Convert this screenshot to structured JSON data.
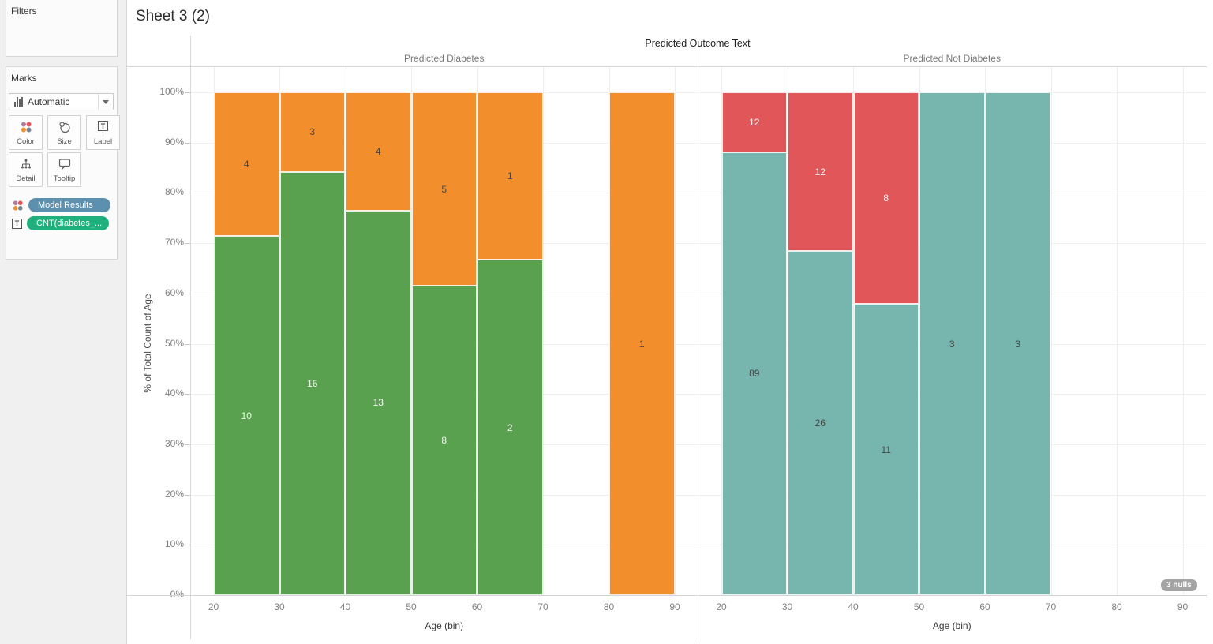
{
  "header": {
    "title": "Sheet 3 (2)"
  },
  "sidebar": {
    "filters_title": "Filters",
    "marks_title": "Marks",
    "mark_type": "Automatic",
    "buttons": [
      {
        "label": "Color"
      },
      {
        "label": "Size"
      },
      {
        "label": "Label"
      },
      {
        "label": "Detail"
      },
      {
        "label": "Tooltip"
      }
    ],
    "pills": [
      {
        "label": "Model Results",
        "color": "#5C90AE",
        "icon": "color-dots-icon"
      },
      {
        "label": "CNT(diabetes_...",
        "color": "#1FB07E",
        "icon": "text-icon"
      }
    ]
  },
  "chart_data": {
    "type": "bar",
    "stacking": "100%",
    "title": "Predicted Outcome Text",
    "xlabel": "Age (bin)",
    "ylabel": "% of Total Count of Age",
    "x_ticks": [
      20,
      30,
      40,
      50,
      60,
      70,
      80,
      90
    ],
    "y_tick_labels": [
      "0%",
      "10%",
      "20%",
      "30%",
      "40%",
      "50%",
      "60%",
      "70%",
      "80%",
      "90%",
      "100%"
    ],
    "ylim": [
      0,
      100
    ],
    "grid": true,
    "legend": "none",
    "colors": {
      "green": "#59A14F",
      "orange": "#F28E2B",
      "teal": "#77B5AF",
      "red": "#E15759"
    },
    "panels": [
      {
        "label": "Predicted Diabetes",
        "bars": [
          {
            "bin_start": 20,
            "segments": [
              {
                "value": 10,
                "pct": 71.4,
                "color": "#59A14F",
                "label_light": true
              },
              {
                "value": 4,
                "pct": 28.6,
                "color": "#F28E2B",
                "label_light": false
              }
            ]
          },
          {
            "bin_start": 30,
            "segments": [
              {
                "value": 16,
                "pct": 84.2,
                "color": "#59A14F",
                "label_light": true
              },
              {
                "value": 3,
                "pct": 15.8,
                "color": "#F28E2B",
                "label_light": false
              }
            ]
          },
          {
            "bin_start": 40,
            "segments": [
              {
                "value": 13,
                "pct": 76.5,
                "color": "#59A14F",
                "label_light": true
              },
              {
                "value": 4,
                "pct": 23.5,
                "color": "#F28E2B",
                "label_light": false
              }
            ]
          },
          {
            "bin_start": 50,
            "segments": [
              {
                "value": 8,
                "pct": 61.5,
                "color": "#59A14F",
                "label_light": true
              },
              {
                "value": 5,
                "pct": 38.5,
                "color": "#F28E2B",
                "label_light": false
              }
            ]
          },
          {
            "bin_start": 60,
            "segments": [
              {
                "value": 2,
                "pct": 66.7,
                "color": "#59A14F",
                "label_light": true
              },
              {
                "value": 1,
                "pct": 33.3,
                "color": "#F28E2B",
                "label_light": false
              }
            ]
          },
          {
            "bin_start": 80,
            "segments": [
              {
                "value": 1,
                "pct": 100,
                "color": "#F28E2B",
                "label_light": false
              }
            ]
          }
        ]
      },
      {
        "label": "Predicted Not Diabetes",
        "bars": [
          {
            "bin_start": 20,
            "segments": [
              {
                "value": 89,
                "pct": 88.1,
                "color": "#77B5AF",
                "label_light": false
              },
              {
                "value": 12,
                "pct": 11.9,
                "color": "#E15759",
                "label_light": true
              }
            ]
          },
          {
            "bin_start": 30,
            "segments": [
              {
                "value": 26,
                "pct": 68.4,
                "color": "#77B5AF",
                "label_light": false
              },
              {
                "value": 12,
                "pct": 31.6,
                "color": "#E15759",
                "label_light": true
              }
            ]
          },
          {
            "bin_start": 40,
            "segments": [
              {
                "value": 11,
                "pct": 57.9,
                "color": "#77B5AF",
                "label_light": false
              },
              {
                "value": 8,
                "pct": 42.1,
                "color": "#E15759",
                "label_light": true
              }
            ]
          },
          {
            "bin_start": 50,
            "segments": [
              {
                "value": 3,
                "pct": 100,
                "color": "#77B5AF",
                "label_light": false
              }
            ]
          },
          {
            "bin_start": 60,
            "segments": [
              {
                "value": 3,
                "pct": 100,
                "color": "#77B5AF",
                "label_light": false
              }
            ]
          }
        ]
      }
    ],
    "nulls_badge": "3 nulls"
  }
}
